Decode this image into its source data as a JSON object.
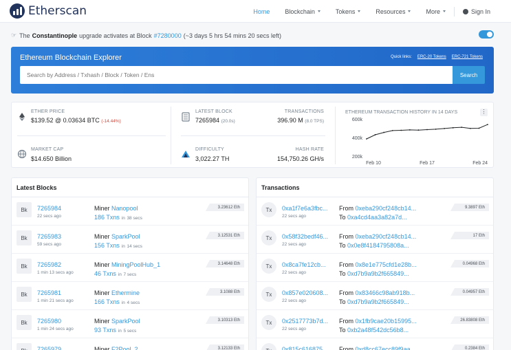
{
  "header": {
    "logo_text": "Etherscan",
    "nav": [
      {
        "label": "Home",
        "active": true,
        "dropdown": false
      },
      {
        "label": "Blockchain",
        "active": false,
        "dropdown": true
      },
      {
        "label": "Tokens",
        "active": false,
        "dropdown": true
      },
      {
        "label": "Resources",
        "active": false,
        "dropdown": true
      },
      {
        "label": "More",
        "active": false,
        "dropdown": true
      }
    ],
    "signin_label": "Sign In"
  },
  "announcement": {
    "prefix": "The",
    "name": "Constantinople",
    "middle": "upgrade activates at Block",
    "block": "#7280000",
    "countdown": "(~3 days 5 hrs 54 mins 20 secs left)"
  },
  "hero": {
    "title": "Ethereum Blockchain Explorer",
    "quick_links_label": "Quick links:",
    "quick_links": [
      "ERC-20 Tokens",
      "ERC-721 Tokens"
    ],
    "search_placeholder": "Search by Address / Txhash / Block / Token / Ens",
    "search_button": "Search"
  },
  "stats": {
    "ether_price": {
      "label": "ETHER PRICE",
      "value": "$139.52 @ 0.03634 BTC",
      "change": "(-14.44%)"
    },
    "market_cap": {
      "label": "MARKET CAP",
      "value": "$14.650 Billion"
    },
    "latest_block": {
      "label": "LATEST BLOCK",
      "value": "7265984",
      "sub": "(20.0s)"
    },
    "transactions": {
      "label": "TRANSACTIONS",
      "value": "396.90 M",
      "sub": "(8.0 TPS)"
    },
    "difficulty": {
      "label": "DIFFICULTY",
      "value": "3,022.27 TH"
    },
    "hash_rate": {
      "label": "HASH RATE",
      "value": "154,750.26 GH/s"
    },
    "colors": {
      "accent": "#3498db",
      "negative": "#de4437",
      "brand": "#21325b"
    }
  },
  "chart_data": {
    "type": "line",
    "title": "ETHEREUM TRANSACTION HISTORY IN 14 DAYS",
    "x": [
      "Feb 10",
      "Feb 11",
      "Feb 12",
      "Feb 13",
      "Feb 14",
      "Feb 15",
      "Feb 16",
      "Feb 17",
      "Feb 18",
      "Feb 19",
      "Feb 20",
      "Feb 21",
      "Feb 22",
      "Feb 23",
      "Feb 24"
    ],
    "values": [
      385000,
      430000,
      455000,
      475000,
      478000,
      482000,
      480000,
      485000,
      490000,
      497000,
      505000,
      510000,
      498000,
      500000,
      540000
    ],
    "x_tick_labels": [
      "Feb 10",
      "Feb 17",
      "Feb 24"
    ],
    "y_tick_labels": [
      "200k",
      "400k",
      "600k"
    ],
    "ylim": [
      200000,
      600000
    ],
    "grid": false
  },
  "latest_blocks": {
    "title": "Latest Blocks",
    "badge": "Bk",
    "miner_label": "Miner",
    "in_label": "in",
    "rows": [
      {
        "number": "7265984",
        "age": "22 secs ago",
        "miner": "Nanopool",
        "txns": "186 Txns",
        "time": "38 secs",
        "reward": "3.23612 Eth"
      },
      {
        "number": "7265983",
        "age": "59 secs ago",
        "miner": "SparkPool",
        "txns": "156 Txns",
        "time": "14 secs",
        "reward": "3.12531 Eth"
      },
      {
        "number": "7265982",
        "age": "1 min 13 secs ago",
        "miner": "MiningPoolHub_1",
        "txns": "46 Txns",
        "time": "7 secs",
        "reward": "3.14648 Eth"
      },
      {
        "number": "7265981",
        "age": "1 min 21 secs ago",
        "miner": "Ethermine",
        "txns": "166 Txns",
        "time": "4 secs",
        "reward": "3.1088 Eth"
      },
      {
        "number": "7265980",
        "age": "1 min 24 secs ago",
        "miner": "SparkPool",
        "txns": "93 Txns",
        "time": "5 secs",
        "reward": "3.10313 Eth"
      },
      {
        "number": "7265979",
        "age": "",
        "miner": "F2Pool_2",
        "txns": "",
        "time": "",
        "reward": "3.12133 Eth"
      }
    ]
  },
  "transactions": {
    "title": "Transactions",
    "badge": "Tx",
    "from_label": "From",
    "to_label": "To",
    "rows": [
      {
        "hash": "0xa1f7e6a3fbc...",
        "age": "22 secs ago",
        "from": "0xeba290cf248cb14...",
        "to": "0xa4cd4aa3a82a7d...",
        "value": "9.3897 Eth"
      },
      {
        "hash": "0x58f32bedf46...",
        "age": "22 secs ago",
        "from": "0xeba290cf248cb14...",
        "to": "0x0e8f4184795808a...",
        "value": "17 Eth"
      },
      {
        "hash": "0x8ca7fe12cb...",
        "age": "22 secs ago",
        "from": "0x8e1e775cfd1e28b...",
        "to": "0xd7b9a9b2f665849...",
        "value": "0.04968 Eth"
      },
      {
        "hash": "0x857e020608...",
        "age": "22 secs ago",
        "from": "0x83466c98ab918b...",
        "to": "0xd7b9a9b2f665849...",
        "value": "0.04957 Eth"
      },
      {
        "hash": "0x2517773b7d...",
        "age": "22 secs ago",
        "from": "0x1fb9cae20b15995...",
        "to": "0xb2a48f542dc56b8...",
        "value": "26.83808 Eth"
      },
      {
        "hash": "0x815c616875...",
        "age": "",
        "from": "0xd8cc67ecc89f9aa...",
        "to": "",
        "value": "0.2384 Eth"
      }
    ]
  }
}
